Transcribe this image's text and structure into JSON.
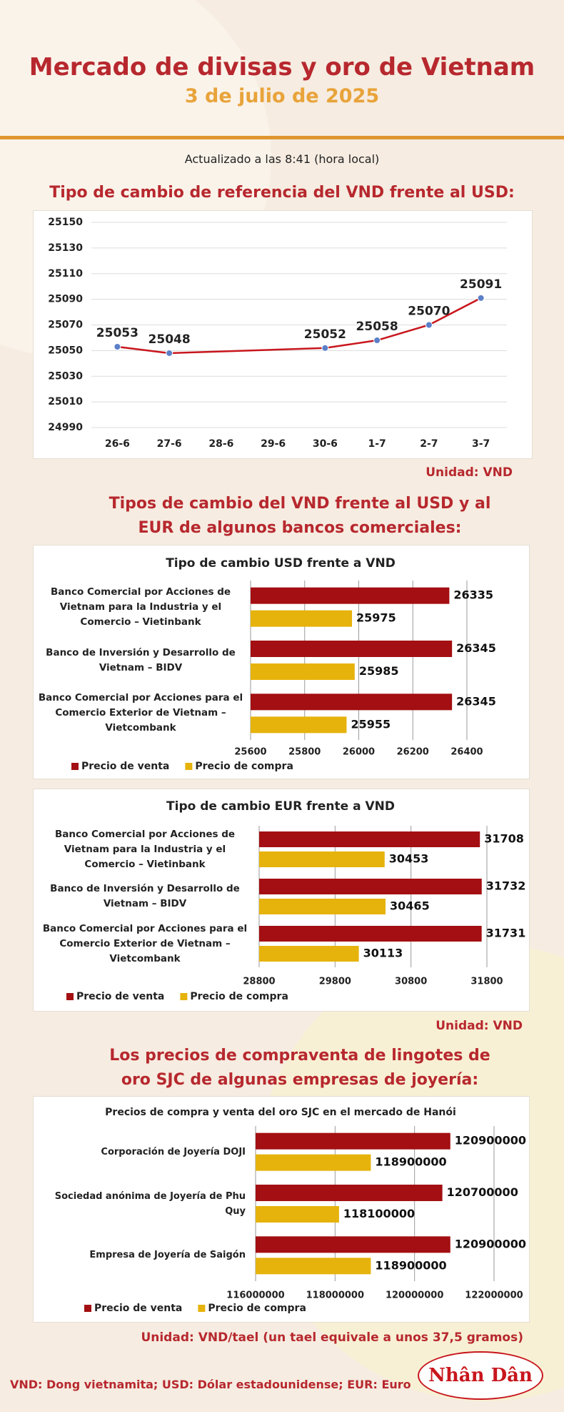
{
  "header": {
    "title": "Mercado de divisas y oro de Vietnam",
    "date": "3 de julio de 2025",
    "updated": "Actualizado a las 8:41 (hora local)"
  },
  "sections": [
    {
      "title": "Tipo de cambio de referencia del VND frente al USD:",
      "unit": "Unidad: VND"
    },
    {
      "title": "Tipos de cambio del VND frente al USD y al EUR de algunos bancos comerciales:",
      "unit": "Unidad: VND"
    },
    {
      "title": "Los precios de compraventa de lingotes de oro SJC de algunas empresas de joyería:",
      "unit": "Unidad: VND/tael (un tael equivale a unos 37,5 gramos)"
    }
  ],
  "chart_data": [
    {
      "type": "line",
      "xticks": [
        "26-6",
        "27-6",
        "28-6",
        "29-6",
        "30-6",
        "1-7",
        "2-7",
        "3-7"
      ],
      "x": [
        "26-6",
        "27-6",
        "30-6",
        "1-7",
        "2-7",
        "3-7"
      ],
      "values": [
        25053,
        25048,
        25052,
        25058,
        25070,
        25091
      ],
      "color": "#c8161d",
      "marker_color": "#5b7fc8",
      "ylim": [
        24990,
        25150
      ],
      "yticks": [
        24990,
        25010,
        25030,
        25050,
        25070,
        25090,
        25110,
        25130,
        25150
      ],
      "grid": true
    },
    {
      "type": "hbar",
      "title": "Tipo de cambio USD frente a VND",
      "categories": [
        "Banco Comercial por Acciones de Vietnam para la Industria y el Comercio – Vietinbank",
        "Banco de Inversión y Desarrollo de Vietnam – BIDV",
        "Banco Comercial por Acciones para el Comercio Exterior de Vietnam – Vietcombank"
      ],
      "series": [
        {
          "name": "Precio de venta",
          "color": "#a30f12",
          "values": [
            26335,
            26345,
            26345
          ]
        },
        {
          "name": "Precio de compra",
          "color": "#e6b30c",
          "values": [
            25975,
            25985,
            25955
          ]
        }
      ],
      "xlim": [
        25600,
        26400
      ],
      "xticks": [
        25600,
        25800,
        26000,
        26200,
        26400
      ],
      "grid": true,
      "legend": "bottom-left"
    },
    {
      "type": "hbar",
      "title": "Tipo de cambio EUR frente a VND",
      "categories": [
        "Banco Comercial por Acciones de Vietnam para la Industria y el Comercio – Vietinbank",
        "Banco de Inversión y Desarrollo de Vietnam – BIDV",
        "Banco Comercial por Acciones para el Comercio Exterior de Vietnam – Vietcombank"
      ],
      "series": [
        {
          "name": "Precio de venta",
          "color": "#a30f12",
          "values": [
            31708,
            31732,
            31731
          ]
        },
        {
          "name": "Precio de compra",
          "color": "#e6b30c",
          "values": [
            30453,
            30465,
            30113
          ]
        }
      ],
      "xlim": [
        28800,
        31800
      ],
      "xticks": [
        28800,
        29800,
        30800,
        31800
      ],
      "grid": true,
      "legend": "bottom-left"
    },
    {
      "type": "hbar",
      "title": "Precios de compra y venta del oro SJC en el mercado de Hanói",
      "categories": [
        "Corporación de Joyería DOJI",
        "Sociedad anónima de Joyería de Phu Quy",
        "Empresa de Joyería de Saigón"
      ],
      "series": [
        {
          "name": "Precio de venta",
          "color": "#a30f12",
          "values": [
            120900000,
            120700000,
            120900000
          ]
        },
        {
          "name": "Precio de compra",
          "color": "#e6b30c",
          "values": [
            118900000,
            118100000,
            118900000
          ]
        }
      ],
      "xlim": [
        116000000,
        122000000
      ],
      "xticks": [
        116000000,
        118000000,
        120000000,
        122000000
      ],
      "grid": true,
      "legend": "bottom-left"
    }
  ],
  "footer": {
    "note": "VND: Dong vietnamita; USD: Dólar estadounidense; EUR: Euro",
    "logo": "Nhân Dân"
  }
}
